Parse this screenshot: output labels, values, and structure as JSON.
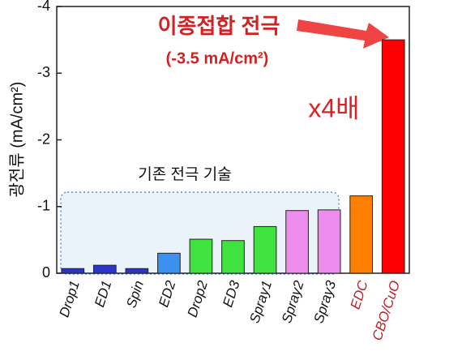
{
  "chart_data": {
    "type": "bar",
    "y_label": "광전류 (mA/cm²)",
    "categories": [
      "Drop1",
      "ED1",
      "Spin",
      "ED2",
      "Drop2",
      "ED3",
      "Spray1",
      "Spray2",
      "Spray3",
      "EDC",
      "CBO/CuO"
    ],
    "values": [
      -0.07,
      -0.12,
      -0.07,
      -0.3,
      -0.51,
      -0.49,
      -0.7,
      -0.94,
      -0.95,
      -1.16,
      -3.5
    ],
    "colors": [
      "#2b36c9",
      "#2b36c9",
      "#2b36c9",
      "#3b90f0",
      "#3fe23f",
      "#3fe23f",
      "#3fe23f",
      "#ee8cee",
      "#ee8cee",
      "#ff8000",
      "#ff0000"
    ],
    "category_label_colors": [
      "#111111",
      "#111111",
      "#111111",
      "#111111",
      "#111111",
      "#111111",
      "#111111",
      "#111111",
      "#111111",
      "#c0202a",
      "#c0202a"
    ],
    "ylim": [
      0,
      -4
    ],
    "yticks": [
      0,
      -1,
      -2,
      -3,
      -4
    ],
    "annotations": {
      "highlight": "이종접합 전극",
      "highlight_value": "(-3.5 mA/cm²)",
      "ratio": "x4배",
      "baseline_group": "기존 전극 기술"
    }
  }
}
